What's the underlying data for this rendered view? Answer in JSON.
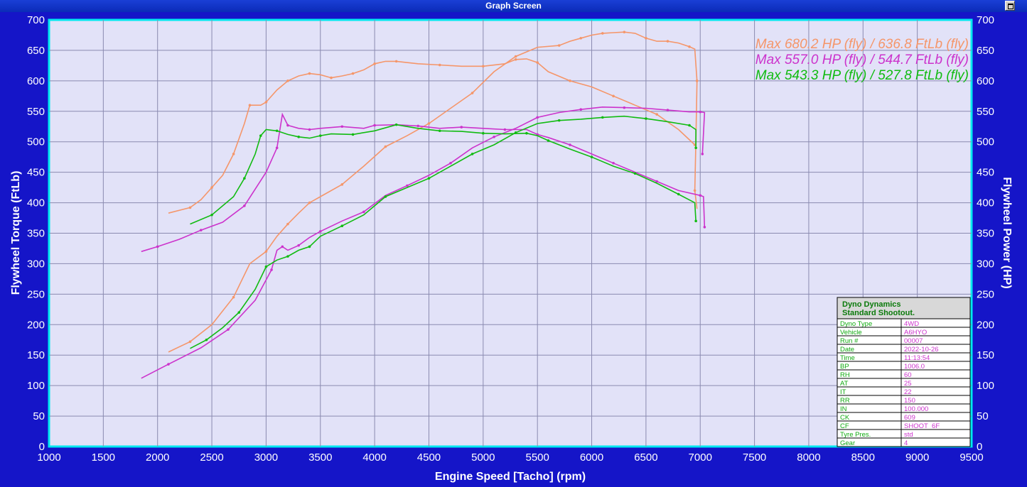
{
  "window": {
    "title": "Graph Screen"
  },
  "chart_data": {
    "type": "line",
    "xlabel": "Engine Speed [Tacho] (rpm)",
    "ylabel_left": "Flywheel Torque (FtLb)",
    "ylabel_right": "Flywheel Power (HP)",
    "xlim": [
      1000,
      9500
    ],
    "ylim": [
      0,
      700
    ],
    "x_ticks": [
      1000,
      1500,
      2000,
      2500,
      3000,
      3500,
      4000,
      4500,
      5000,
      5500,
      6000,
      6500,
      7000,
      7500,
      8000,
      8500,
      9000,
      9500
    ],
    "y_ticks": [
      0,
      50,
      100,
      150,
      200,
      250,
      300,
      350,
      400,
      450,
      500,
      550,
      600,
      650,
      700
    ],
    "grid": true,
    "legend": [
      {
        "max_label": "Max",
        "text": "680.2 HP (fly) / 636.8 FtLb (fly)",
        "color": "#f5966a"
      },
      {
        "max_label": "Max",
        "text": "557.0 HP (fly) / 544.7 FtLb (fly)",
        "color": "#cc33cc"
      },
      {
        "max_label": "Max",
        "text": "543.3 HP (fly) / 527.8 FtLb (fly)",
        "color": "#11bb11"
      }
    ],
    "series": [
      {
        "kind": "torque",
        "color": "#f5966a",
        "points": [
          [
            2100,
            383
          ],
          [
            2300,
            392
          ],
          [
            2400,
            405
          ],
          [
            2500,
            425
          ],
          [
            2600,
            445
          ],
          [
            2700,
            480
          ],
          [
            2800,
            530
          ],
          [
            2850,
            560
          ],
          [
            2950,
            560
          ],
          [
            3000,
            565
          ],
          [
            3100,
            585
          ],
          [
            3200,
            600
          ],
          [
            3300,
            608
          ],
          [
            3400,
            612
          ],
          [
            3500,
            610
          ],
          [
            3600,
            605
          ],
          [
            3700,
            608
          ],
          [
            3800,
            612
          ],
          [
            3900,
            618
          ],
          [
            4000,
            628
          ],
          [
            4100,
            632
          ],
          [
            4200,
            632
          ],
          [
            4400,
            628
          ],
          [
            4600,
            626
          ],
          [
            4800,
            624
          ],
          [
            5000,
            624
          ],
          [
            5200,
            628
          ],
          [
            5300,
            635
          ],
          [
            5400,
            636
          ],
          [
            5500,
            630
          ],
          [
            5600,
            615
          ],
          [
            5800,
            600
          ],
          [
            6000,
            590
          ],
          [
            6200,
            575
          ],
          [
            6400,
            560
          ],
          [
            6600,
            545
          ],
          [
            6800,
            520
          ],
          [
            6950,
            495
          ]
        ]
      },
      {
        "kind": "power",
        "color": "#f5966a",
        "points": [
          [
            2100,
            155
          ],
          [
            2300,
            172
          ],
          [
            2500,
            200
          ],
          [
            2700,
            245
          ],
          [
            2850,
            300
          ],
          [
            3000,
            320
          ],
          [
            3100,
            345
          ],
          [
            3200,
            365
          ],
          [
            3300,
            383
          ],
          [
            3400,
            400
          ],
          [
            3500,
            410
          ],
          [
            3700,
            430
          ],
          [
            3900,
            460
          ],
          [
            4100,
            492
          ],
          [
            4300,
            510
          ],
          [
            4500,
            530
          ],
          [
            4700,
            555
          ],
          [
            4900,
            580
          ],
          [
            5100,
            615
          ],
          [
            5300,
            640
          ],
          [
            5500,
            655
          ],
          [
            5700,
            658
          ],
          [
            5800,
            665
          ],
          [
            5900,
            670
          ],
          [
            6000,
            675
          ],
          [
            6100,
            678
          ],
          [
            6200,
            679
          ],
          [
            6300,
            680
          ],
          [
            6400,
            678
          ],
          [
            6500,
            670
          ],
          [
            6600,
            665
          ],
          [
            6700,
            665
          ],
          [
            6800,
            662
          ],
          [
            6900,
            656
          ],
          [
            6950,
            652
          ],
          [
            6970,
            600
          ],
          [
            6960,
            500
          ],
          [
            6950,
            420
          ],
          [
            6970,
            390
          ]
        ]
      },
      {
        "kind": "torque",
        "color": "#cc33cc",
        "points": [
          [
            1850,
            320
          ],
          [
            2000,
            328
          ],
          [
            2200,
            340
          ],
          [
            2400,
            355
          ],
          [
            2600,
            368
          ],
          [
            2800,
            395
          ],
          [
            3000,
            450
          ],
          [
            3100,
            490
          ],
          [
            3150,
            545
          ],
          [
            3200,
            527
          ],
          [
            3300,
            522
          ],
          [
            3400,
            520
          ],
          [
            3500,
            522
          ],
          [
            3700,
            525
          ],
          [
            3900,
            522
          ],
          [
            4000,
            527
          ],
          [
            4200,
            528
          ],
          [
            4400,
            526
          ],
          [
            4600,
            522
          ],
          [
            4800,
            524
          ],
          [
            5000,
            522
          ],
          [
            5200,
            520
          ],
          [
            5400,
            520
          ],
          [
            5500,
            512
          ],
          [
            5600,
            507
          ],
          [
            5800,
            495
          ],
          [
            6000,
            480
          ],
          [
            6200,
            465
          ],
          [
            6400,
            450
          ],
          [
            6600,
            435
          ],
          [
            6800,
            420
          ],
          [
            7000,
            412
          ],
          [
            7030,
            410
          ],
          [
            7040,
            360
          ]
        ]
      },
      {
        "kind": "power",
        "color": "#cc33cc",
        "points": [
          [
            1850,
            112
          ],
          [
            2100,
            135
          ],
          [
            2400,
            162
          ],
          [
            2650,
            192
          ],
          [
            2900,
            240
          ],
          [
            3050,
            290
          ],
          [
            3100,
            322
          ],
          [
            3150,
            328
          ],
          [
            3200,
            322
          ],
          [
            3300,
            330
          ],
          [
            3400,
            343
          ],
          [
            3500,
            353
          ],
          [
            3700,
            370
          ],
          [
            3900,
            385
          ],
          [
            4100,
            412
          ],
          [
            4300,
            428
          ],
          [
            4500,
            445
          ],
          [
            4700,
            465
          ],
          [
            4900,
            490
          ],
          [
            5100,
            508
          ],
          [
            5300,
            522
          ],
          [
            5500,
            540
          ],
          [
            5700,
            548
          ],
          [
            5900,
            553
          ],
          [
            6100,
            557
          ],
          [
            6300,
            556
          ],
          [
            6500,
            555
          ],
          [
            6700,
            552
          ],
          [
            6900,
            549
          ],
          [
            7000,
            549
          ],
          [
            7040,
            548
          ],
          [
            7020,
            480
          ]
        ]
      },
      {
        "kind": "torque",
        "color": "#11bb11",
        "points": [
          [
            2300,
            365
          ],
          [
            2500,
            380
          ],
          [
            2700,
            410
          ],
          [
            2800,
            440
          ],
          [
            2900,
            480
          ],
          [
            2950,
            510
          ],
          [
            3000,
            520
          ],
          [
            3100,
            518
          ],
          [
            3200,
            512
          ],
          [
            3300,
            508
          ],
          [
            3400,
            506
          ],
          [
            3500,
            510
          ],
          [
            3600,
            513
          ],
          [
            3800,
            512
          ],
          [
            4000,
            518
          ],
          [
            4200,
            528
          ],
          [
            4400,
            522
          ],
          [
            4600,
            518
          ],
          [
            4800,
            517
          ],
          [
            5000,
            514
          ],
          [
            5200,
            513
          ],
          [
            5400,
            514
          ],
          [
            5500,
            510
          ],
          [
            5600,
            502
          ],
          [
            5800,
            488
          ],
          [
            6000,
            475
          ],
          [
            6200,
            460
          ],
          [
            6400,
            448
          ],
          [
            6600,
            432
          ],
          [
            6800,
            414
          ],
          [
            6950,
            400
          ],
          [
            6960,
            370
          ]
        ]
      },
      {
        "kind": "power",
        "color": "#11bb11",
        "points": [
          [
            2300,
            161
          ],
          [
            2450,
            175
          ],
          [
            2600,
            195
          ],
          [
            2750,
            220
          ],
          [
            2900,
            258
          ],
          [
            3000,
            295
          ],
          [
            3100,
            306
          ],
          [
            3200,
            312
          ],
          [
            3300,
            322
          ],
          [
            3400,
            328
          ],
          [
            3500,
            345
          ],
          [
            3700,
            362
          ],
          [
            3900,
            380
          ],
          [
            4100,
            410
          ],
          [
            4300,
            425
          ],
          [
            4500,
            440
          ],
          [
            4700,
            460
          ],
          [
            4900,
            480
          ],
          [
            5100,
            495
          ],
          [
            5300,
            515
          ],
          [
            5500,
            530
          ],
          [
            5700,
            535
          ],
          [
            5900,
            537
          ],
          [
            6100,
            540
          ],
          [
            6300,
            542
          ],
          [
            6500,
            538
          ],
          [
            6700,
            533
          ],
          [
            6900,
            527
          ],
          [
            6960,
            520
          ],
          [
            6960,
            490
          ]
        ]
      }
    ],
    "info_table": {
      "title_line1": "Dyno Dynamics",
      "title_line2": "Standard Shootout.",
      "rows": [
        [
          "Dyno Type",
          "4WD"
        ],
        [
          "Vehicle",
          "A6HYO"
        ],
        [
          "Run #",
          "00007"
        ],
        [
          "Date",
          "2022-10-26"
        ],
        [
          "Time",
          "11:13:54"
        ],
        [
          "BP",
          "1006.0"
        ],
        [
          "RH",
          "60"
        ],
        [
          "AT",
          "25"
        ],
        [
          "IT",
          "22"
        ],
        [
          "RR",
          "150"
        ],
        [
          "IN",
          "100.000"
        ],
        [
          "CK",
          "609"
        ],
        [
          "CF",
          "SHOOT_6F"
        ],
        [
          "Tyre Pres.",
          "std"
        ],
        [
          "Gear",
          "4"
        ]
      ]
    }
  }
}
